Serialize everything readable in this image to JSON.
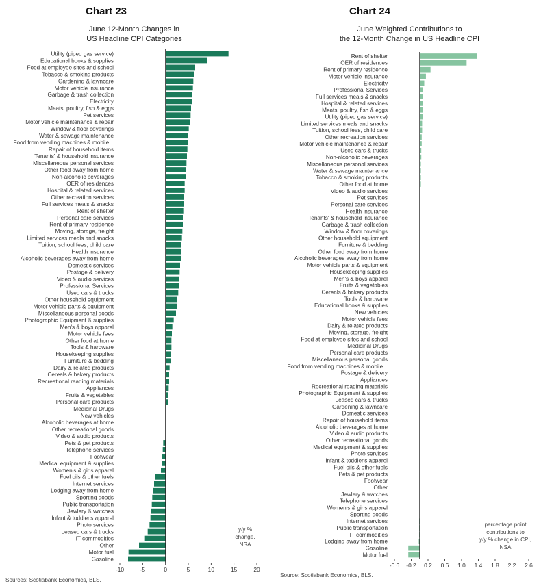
{
  "colors": {
    "chart23_bar": "#1a7a5a",
    "chart24_bar": "#86c4a0",
    "axis": "#222222"
  },
  "chart_data": [
    {
      "type": "bar",
      "orientation": "horizontal",
      "chart_number": "Chart 23",
      "title_lines": [
        "June 12-Month Changes in",
        "US Headline CPI Categories"
      ],
      "source": "Sources: Scotiabank Economics, BLS.",
      "note_lines": [
        "y/y %",
        "change,",
        "NSA"
      ],
      "xlim": [
        -10,
        20
      ],
      "xticks": [
        "-10",
        "-5",
        "0",
        "5",
        "10",
        "15",
        "20"
      ],
      "categories": [
        "Utility (piped gas service)",
        "Educational books & supplies",
        "Food at employee sites and school",
        "Tobacco & smoking products",
        "Gardening & lawncare",
        "Motor vehicle insurance",
        "Garbage & trash collection",
        "Electricity",
        "Meats, poultry, fish & eggs",
        "Pet services",
        "Motor vehicle maintenance & repair",
        "Window & floor coverings",
        "Water & sewage maintenance",
        "Food from vending machines & mobile...",
        "Repair of household items",
        "Tenants' & household insurance",
        "Miscellaneous personal services",
        "Other food away from home",
        "Non-alcoholic beverages",
        "OER of residences",
        "Hospital & related services",
        "Other recreation services",
        "Full services meals & snacks",
        "Rent of shelter",
        "Personal care services",
        "Rent of primary residence",
        "Moving, storage, freight",
        "Limited services meals and snacks",
        "Tuition, school fees, child care",
        "Health insurance",
        "Alcoholic beverages away from home",
        "Domestic services",
        "Postage & delivery",
        "Video & audio services",
        "Professional Services",
        "Used cars & trucks",
        "Other household equipment",
        "Motor vehicle parts & equipment",
        "Miscellaneous personal goods",
        "Photographic Equipment & supplies",
        "Men's & boys apparel",
        "Motor vehicle fees",
        "Other food at home",
        "Tools & hardware",
        "Housekeeping supplies",
        "Furniture & bedding",
        "Dairy & related products",
        "Cereals & bakery products",
        "Recreational reading materials",
        "Appliances",
        "Fruits & vegetables",
        "Personal care products",
        "Medicinal Drugs",
        "New vehicles",
        "Alcoholic beverages at home",
        "Other recreational goods",
        "Video & audio products",
        "Pets & pet products",
        "Telephone services",
        "Footwear",
        "Medical equipment & supplies",
        "Women's & girls apparel",
        "Fuel oils & other fuels",
        "Internet services",
        "Lodging away from home",
        "Sporting goods",
        "Public transportation",
        "Jewlery & watches",
        "Infant & toddler's apparel",
        "Photo services",
        "Leased cars & trucks",
        "IT commodities",
        "Other",
        "Motor fuel",
        "Gasoline"
      ],
      "values": [
        13.8,
        9.2,
        6.5,
        6.3,
        6.1,
        6.0,
        5.9,
        5.8,
        5.6,
        5.5,
        5.3,
        5.1,
        5.0,
        4.9,
        4.8,
        4.7,
        4.6,
        4.5,
        4.4,
        4.2,
        4.2,
        4.1,
        4.0,
        3.9,
        3.8,
        3.8,
        3.7,
        3.6,
        3.5,
        3.5,
        3.4,
        3.2,
        3.1,
        3.0,
        2.9,
        2.8,
        2.6,
        2.5,
        2.3,
        1.8,
        1.5,
        1.4,
        1.3,
        1.3,
        1.2,
        1.1,
        0.9,
        0.8,
        0.8,
        0.7,
        0.6,
        0.5,
        0.2,
        0.1,
        0.1,
        0.1,
        0.0,
        -0.5,
        -0.6,
        -0.7,
        -0.8,
        -1.0,
        -2.2,
        -2.5,
        -2.8,
        -2.9,
        -3.0,
        -3.1,
        -3.3,
        -3.5,
        -3.9,
        -4.5,
        -5.8,
        -8.1,
        -8.2
      ]
    },
    {
      "type": "bar",
      "orientation": "horizontal",
      "chart_number": "Chart 24",
      "title_lines": [
        "June Weighted Contributions to",
        "the 12-Month Change in US Headline CPI"
      ],
      "source": "Source: Scotiabank Economics, BLS.",
      "note_lines": [
        "percentage point",
        "contributions to",
        "y/y % change in CPI,",
        "NSA"
      ],
      "xlim": [
        -0.6,
        2.6
      ],
      "xticks": [
        "-0.6",
        "-0.2",
        "0.2",
        "0.6",
        "1.0",
        "1.4",
        "1.8",
        "2.2",
        "2.6"
      ],
      "categories": [
        "Rent of shelter",
        "OER of residences",
        "Rent of  primary residence",
        "Motor vehicle insurance",
        "Electricity",
        "Professional Services",
        "Full services meals & snacks",
        "Hospital & related services",
        "Meats, poultry, fish & eggs",
        "Utility (piped gas service)",
        "Limited services meals and snacks",
        "Tuition, school fees, child care",
        "Other recreation services",
        "Motor vehicle maintenance & repair",
        "Used cars & trucks",
        "Non-alcoholic beverages",
        "Miscellaneous personal services",
        "Water & sewage maintenance",
        "Tobacco & smoking products",
        "Other food at home",
        "Video & audio services",
        "Pet services",
        "Personal care services",
        "Health insurance",
        "Tenants' & household insurance",
        "Garbage & trash collection",
        "Window & floor coverings",
        "Other household equipment",
        "Furniture & bedding",
        "Other food away from home",
        "Alcoholic beverages away from home",
        "Motor vehicle parts & equipment",
        "Housekeeping supplies",
        "Men's & boys apparel",
        "Fruits & vegetables",
        "Cereals & bakery products",
        "Tools & hardware",
        "Educational books & supplies",
        "New vehicles",
        "Motor vehicle fees",
        "Dairy & related products",
        "Moving, storage, freight",
        "Food at employee sites and school",
        "Medicinal Drugs",
        "Personal care products",
        "Miscellaneous personal goods",
        "Food from vending machines & mobile...",
        "Postage & delivery",
        "Appliances",
        "Recreational reading materials",
        "Photographic Equipment & supplies",
        "Leased cars & trucks",
        "Gardening & lawncare",
        "Domestic services",
        "Repair of household items",
        "Alcoholic beverages at home",
        "Video & audio products",
        "Other recreational goods",
        "Medical equipment & supplies",
        "Photo services",
        "Infant & toddler's apparel",
        "Fuel oils & other fuels",
        "Pets & pet products",
        "Footwear",
        "Other",
        "Jewlery & watches",
        "Telephone services",
        "Women's & girls apparel",
        "Sporting goods",
        "Internet services",
        "Public transportation",
        "IT commodities",
        "Lodging away from home",
        "Gasoline",
        "Motor fuel"
      ],
      "values": [
        1.36,
        1.12,
        0.26,
        0.15,
        0.11,
        0.07,
        0.07,
        0.07,
        0.07,
        0.07,
        0.06,
        0.06,
        0.05,
        0.05,
        0.04,
        0.04,
        0.03,
        0.03,
        0.03,
        0.03,
        0.02,
        0.02,
        0.02,
        0.02,
        0.02,
        0.02,
        0.02,
        0.02,
        0.02,
        0.02,
        0.02,
        0.02,
        0.01,
        0.01,
        0.01,
        0.01,
        0.01,
        0.01,
        0.01,
        0.01,
        0.01,
        0.01,
        0.01,
        0.01,
        0.01,
        0.01,
        0.01,
        0.01,
        0.0,
        0.0,
        0.0,
        0.0,
        0.0,
        0.0,
        0.0,
        0.0,
        0.0,
        0.0,
        0.0,
        0.0,
        0.0,
        0.0,
        0.0,
        0.0,
        0.0,
        0.0,
        0.0,
        0.0,
        0.0,
        -0.01,
        -0.01,
        -0.01,
        -0.02,
        -0.27,
        -0.27
      ]
    }
  ]
}
